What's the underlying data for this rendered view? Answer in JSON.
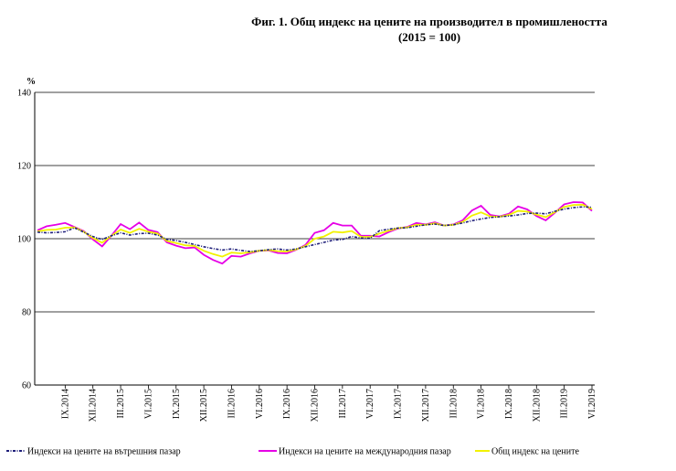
{
  "title": "Фиг. 1. Общ индекс на цените на производител в промишлеността",
  "subtitle": "(2015 = 100)",
  "chart_data": {
    "type": "line",
    "ylabel": "%",
    "ylim": [
      60,
      140
    ],
    "yticks": [
      60,
      80,
      100,
      120,
      140
    ],
    "grid": true,
    "legend_position": "bottom",
    "x": [
      "V1.2014",
      "VII.2014",
      "VIII.2014",
      "IX.2014",
      "X.2014",
      "XI.2014",
      "XII.2014",
      "I.2015",
      "II.2015",
      "III.2015",
      "IV.2015",
      "V.2015",
      "VI.2015",
      "VII.2015",
      "VIII.2015",
      "IX.2015",
      "X.2015",
      "XI.2015",
      "XII.2015",
      "I.2016",
      "II.2016",
      "III.2016",
      "IV.2016",
      "V.2016",
      "VI.2016",
      "VII.2016",
      "VIII.2016",
      "IX.2016",
      "X.2016",
      "XI.2016",
      "XII.2016",
      "I.2017",
      "II.2017",
      "III.2017",
      "IV.2017",
      "V.2017",
      "VI.2017",
      "VII.2017",
      "VIII.2017",
      "IX.2017",
      "X.2017",
      "XI.2017",
      "XII.2017",
      "I.2018",
      "II.2018",
      "III.2018",
      "IV.2018",
      "V.2018",
      "VI.2018",
      "VII.2018",
      "VIII.2018",
      "IX.2018",
      "X.2018",
      "XI.2018",
      "XII.2018",
      "I.2019",
      "II.2019",
      "III.2019",
      "IV.2019",
      "V.2019",
      "VI.2019"
    ],
    "x_tick_labels": [
      "VI.2014",
      "IX.2014",
      "XII.2014",
      "III.2015",
      "VI.2015",
      "IX.2015",
      "XII.2015",
      "III.2016",
      "VI.2016",
      "IX.2016",
      "XII.2016",
      "III.2017",
      "VI.2017",
      "IX.2017",
      "XII.2017",
      "III.2018",
      "VI.2018",
      "IX.2018",
      "XII.2018",
      "III.2019",
      "VI.2019"
    ],
    "series": [
      {
        "name": "Индекси на цените на вътрешния пазар",
        "color": "#1f1f7a",
        "style": "dashdot",
        "values": [
          101.8,
          101.6,
          101.7,
          101.9,
          103.0,
          101.8,
          100.6,
          99.8,
          100.8,
          101.6,
          101.0,
          101.4,
          101.5,
          101.0,
          99.8,
          99.5,
          99.0,
          98.4,
          97.8,
          97.3,
          96.9,
          97.2,
          96.8,
          96.5,
          96.7,
          97.0,
          97.2,
          96.9,
          97.2,
          97.8,
          98.4,
          99.0,
          99.6,
          99.8,
          100.6,
          100.2,
          100.1,
          102.2,
          102.6,
          102.9,
          103.0,
          103.4,
          103.8,
          104.0,
          103.6,
          103.8,
          104.3,
          104.9,
          105.4,
          105.8,
          106.0,
          106.2,
          106.5,
          106.9,
          107.0,
          106.8,
          107.5,
          108.1,
          108.5,
          108.7,
          108.6
        ]
      },
      {
        "name": "Индекси на цените на международния пазар",
        "color": "#e600e6",
        "style": "solid",
        "values": [
          102.3,
          103.4,
          103.8,
          104.3,
          103.2,
          102.1,
          99.8,
          97.9,
          100.8,
          104.0,
          102.6,
          104.4,
          102.4,
          101.8,
          99.0,
          98.1,
          97.4,
          97.6,
          95.6,
          94.2,
          93.2,
          95.3,
          95.1,
          96.0,
          96.7,
          96.8,
          96.1,
          96.0,
          97.0,
          98.3,
          101.6,
          102.3,
          104.3,
          103.6,
          103.6,
          100.8,
          100.8,
          100.6,
          101.8,
          102.8,
          103.2,
          104.3,
          103.9,
          104.5,
          103.6,
          103.9,
          105.0,
          107.7,
          109.0,
          106.5,
          106.1,
          106.8,
          108.8,
          108.0,
          106.2,
          105.0,
          107.1,
          109.4,
          110.0,
          109.9,
          107.6
        ]
      },
      {
        "name": "Общ индекс на цените",
        "color": "#f2f200",
        "style": "solid",
        "values": [
          102.0,
          102.4,
          102.5,
          103.0,
          103.1,
          101.9,
          100.2,
          98.9,
          100.8,
          102.5,
          101.6,
          102.7,
          101.9,
          101.4,
          99.4,
          98.8,
          98.2,
          98.0,
          96.7,
          95.8,
          95.1,
          96.2,
          96.0,
          96.3,
          96.7,
          96.9,
          96.6,
          96.5,
          97.1,
          98.0,
          100.0,
          100.6,
          101.9,
          101.7,
          102.1,
          100.5,
          100.5,
          101.4,
          102.2,
          102.9,
          103.1,
          103.8,
          103.8,
          104.2,
          103.6,
          103.8,
          104.6,
          106.3,
          107.2,
          106.1,
          106.0,
          106.5,
          107.6,
          107.4,
          106.6,
          105.9,
          107.3,
          108.7,
          109.2,
          109.3,
          108.1
        ]
      }
    ]
  }
}
